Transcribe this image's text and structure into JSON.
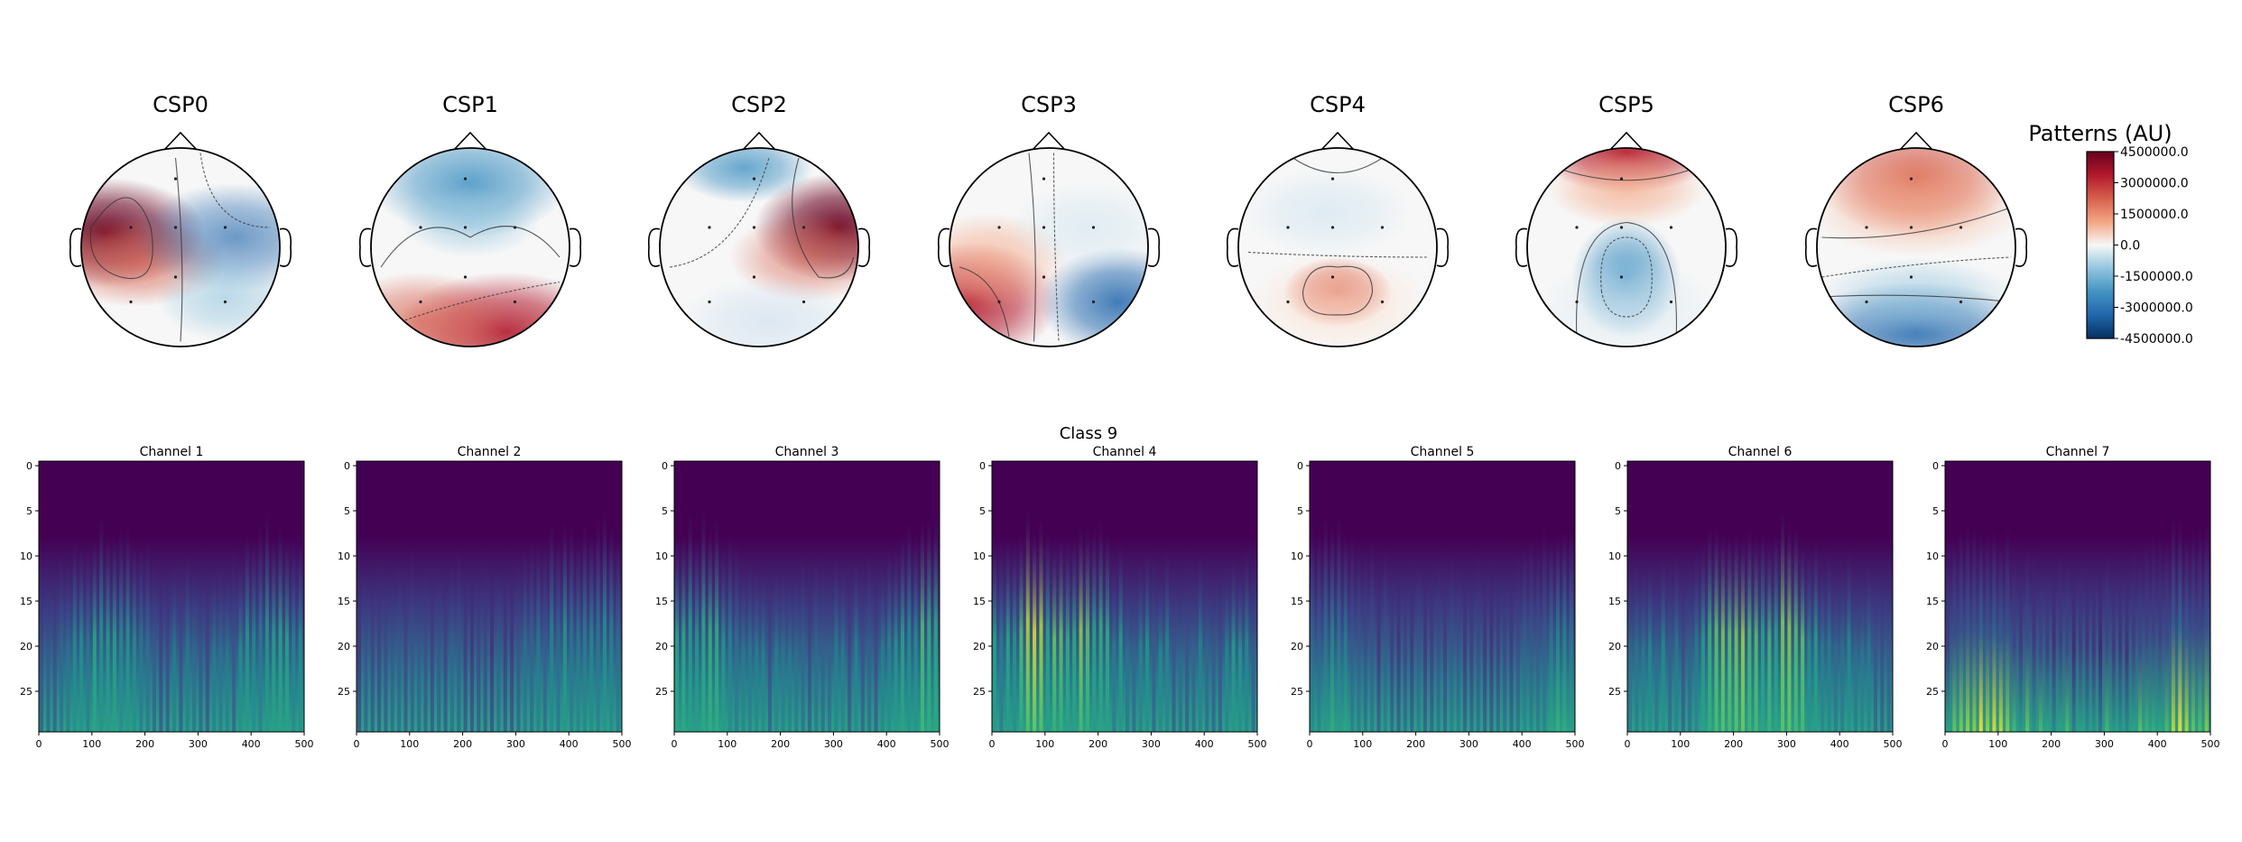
{
  "chart_data": [
    {
      "type": "heatmap",
      "kind": "topomap",
      "maps": [
        {
          "title": "CSP0"
        },
        {
          "title": "CSP1"
        },
        {
          "title": "CSP2"
        },
        {
          "title": "CSP3"
        },
        {
          "title": "CSP4"
        },
        {
          "title": "CSP5"
        },
        {
          "title": "CSP6"
        }
      ],
      "colormap": "RdBu_r",
      "colorbar": {
        "title": "Patterns (AU)",
        "range": [
          -4500000.0,
          4500000.0
        ],
        "ticks": [
          4500000.0,
          3000000.0,
          1500000.0,
          0.0,
          -1500000.0,
          -3000000.0,
          -4500000.0
        ],
        "tick_labels": [
          "4500000.0",
          "3000000.0",
          "1500000.0",
          "0.0",
          "-1500000.0",
          "-3000000.0",
          "-4500000.0"
        ]
      }
    },
    {
      "type": "heatmap",
      "kind": "scalogram",
      "suptitle": "Class 9",
      "colormap": "viridis",
      "panels": [
        {
          "title": "Channel 1"
        },
        {
          "title": "Channel 2"
        },
        {
          "title": "Channel 3"
        },
        {
          "title": "Channel 4"
        },
        {
          "title": "Channel 5"
        },
        {
          "title": "Channel 6"
        },
        {
          "title": "Channel 7"
        }
      ],
      "xlim": [
        0,
        500
      ],
      "ylim": [
        29,
        0
      ],
      "x_ticks": [
        0,
        100,
        200,
        300,
        400,
        500
      ],
      "y_ticks": [
        0,
        5,
        10,
        15,
        20,
        25
      ]
    }
  ]
}
